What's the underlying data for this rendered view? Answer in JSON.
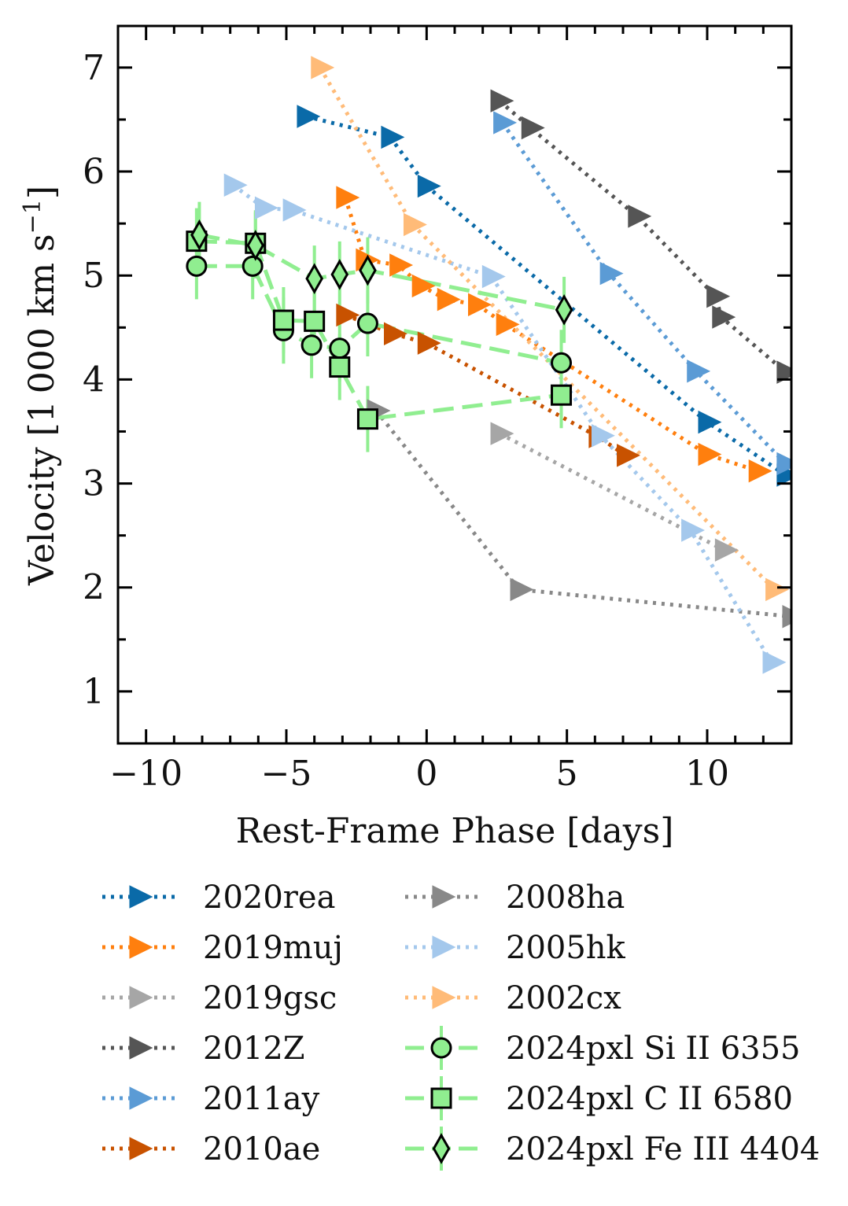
{
  "chart_data": {
    "type": "line",
    "xlabel": "Rest-Frame Phase [days]",
    "ylabel_main": "Velocity [1",
    "ylabel_thousand": "000 km s",
    "ylabel_exp": "−1",
    "ylabel_close": "]",
    "xlim": [
      -11,
      13
    ],
    "ylim": [
      0.5,
      7.4
    ],
    "xticks": [
      -10,
      -5,
      0,
      5,
      10
    ],
    "xtick_labels": [
      "−10",
      "−5",
      "0",
      "5",
      "10"
    ],
    "yticks": [
      1,
      2,
      3,
      4,
      5,
      6,
      7
    ],
    "ytick_labels": [
      "1",
      "2",
      "3",
      "4",
      "5",
      "6",
      "7"
    ],
    "series": [
      {
        "name": "2020rea",
        "color": "#0a6aa8",
        "marker": "triangle-right",
        "line": "dotted",
        "x": [
          -4.3,
          -1.3,
          0.0,
          10.0,
          12.8
        ],
        "y": [
          6.53,
          6.33,
          5.86,
          3.59,
          3.08
        ]
      },
      {
        "name": "2019muj",
        "color": "#ff7f0e",
        "marker": "triangle-right",
        "line": "dotted",
        "x": [
          -2.9,
          -2.2,
          -1.0,
          -0.2,
          0.7,
          1.8,
          2.8,
          10.0,
          11.8
        ],
        "y": [
          5.75,
          5.15,
          5.1,
          4.9,
          4.77,
          4.72,
          4.53,
          3.28,
          3.12
        ]
      },
      {
        "name": "2019gsc",
        "color": "#a6a6a6",
        "marker": "triangle-right",
        "line": "dotted",
        "x": [
          2.6,
          10.6
        ],
        "y": [
          3.48,
          2.36
        ]
      },
      {
        "name": "2012Z",
        "color": "#555555",
        "marker": "triangle-right",
        "line": "dotted",
        "x": [
          2.6,
          3.7,
          7.5,
          10.3,
          10.5,
          12.8
        ],
        "y": [
          6.68,
          6.42,
          5.57,
          4.8,
          4.6,
          4.07
        ]
      },
      {
        "name": "2011ay",
        "color": "#5b9bd5",
        "marker": "triangle-right",
        "line": "dotted",
        "x": [
          2.7,
          6.5,
          9.6,
          12.8
        ],
        "y": [
          6.47,
          5.02,
          4.08,
          3.19
        ]
      },
      {
        "name": "2010ae",
        "color": "#c85200",
        "marker": "triangle-right",
        "line": "dotted",
        "x": [
          -2.9,
          -1.2,
          0.0,
          6.1,
          7.1
        ],
        "y": [
          4.62,
          4.44,
          4.35,
          3.45,
          3.27
        ]
      },
      {
        "name": "2008ha",
        "color": "#888888",
        "marker": "triangle-right",
        "line": "dotted",
        "x": [
          -1.8,
          3.3,
          13.0
        ],
        "y": [
          3.7,
          1.98,
          1.72
        ]
      },
      {
        "name": "2005hk",
        "color": "#a4c8ec",
        "marker": "triangle-right",
        "line": "dotted",
        "x": [
          -6.9,
          -5.8,
          -4.8,
          2.3,
          6.2,
          9.4,
          12.3
        ],
        "y": [
          5.87,
          5.65,
          5.63,
          4.99,
          3.46,
          2.55,
          1.28
        ]
      },
      {
        "name": "2002cx",
        "color": "#ffbb78",
        "marker": "triangle-right",
        "line": "dotted",
        "x": [
          -3.8,
          -0.5,
          12.4
        ],
        "y": [
          7.0,
          5.49,
          1.98
        ]
      },
      {
        "name": "2024pxl Si II 6355",
        "color": "#90ee90",
        "marker": "circle",
        "line": "dashed",
        "x": [
          -8.2,
          -6.2,
          -5.1,
          -4.1,
          -3.1,
          -2.1,
          4.8
        ],
        "y": [
          5.09,
          5.09,
          4.47,
          4.33,
          4.3,
          4.54,
          4.16
        ]
      },
      {
        "name": "2024pxl C II 6580",
        "color": "#90ee90",
        "marker": "square",
        "line": "dashed",
        "x": [
          -8.2,
          -6.1,
          -5.1,
          -4.0,
          -3.1,
          -2.1,
          4.8
        ],
        "y": [
          5.33,
          5.31,
          4.57,
          4.56,
          4.12,
          3.62,
          3.85
        ]
      },
      {
        "name": "2024pxl Fe III 4404",
        "color": "#90ee90",
        "marker": "diamond",
        "line": "dashed",
        "x": [
          -8.1,
          -6.1,
          -4.0,
          -3.1,
          -2.1,
          4.9
        ],
        "y": [
          5.39,
          5.29,
          4.97,
          5.01,
          5.05,
          4.67
        ]
      }
    ]
  }
}
